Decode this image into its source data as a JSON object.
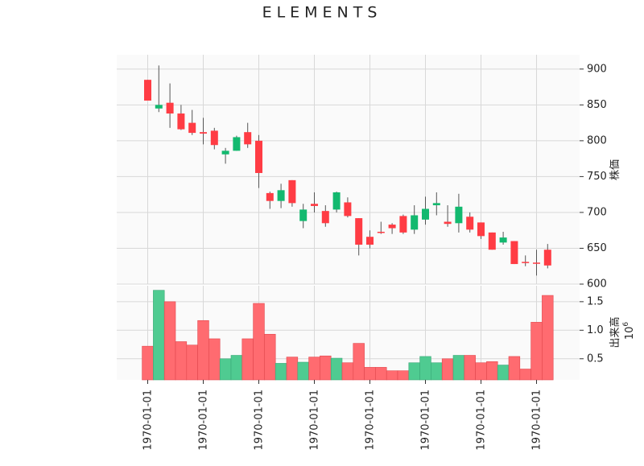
{
  "chart_data": {
    "type": "candlestick",
    "title": "ELEMENTS",
    "price_label": "株価",
    "volume_label": "出来高",
    "volume_multiplier": "10",
    "volume_multiplier_exp": "6",
    "price_ylim": [
      600,
      920
    ],
    "price_ticks": [
      "600",
      "650",
      "700",
      "750",
      "800",
      "850",
      "900"
    ],
    "volume_ylim": [
      0.13,
      1.78
    ],
    "volume_ticks": [
      "0.5",
      "1.0",
      "1.5"
    ],
    "x_tick_labels": [
      "1970-01-01",
      "1970-01-01",
      "1970-01-01",
      "1970-01-01",
      "1970-01-01",
      "1970-01-01",
      "1970-01-01",
      "1970-01-01"
    ],
    "x_tick_at": [
      0,
      5,
      10,
      15,
      20,
      25,
      30,
      35
    ],
    "up_color": "#13b96f",
    "down_color": "#ff3c44",
    "vol_up_color": "#4fcb91",
    "vol_down_color": "#ff6b70",
    "grid": true,
    "candles": [
      {
        "o": 885,
        "h": 885,
        "l": 856,
        "c": 856,
        "v": 0.72
      },
      {
        "o": 845,
        "h": 905,
        "l": 840,
        "c": 850,
        "v": 1.7
      },
      {
        "o": 853,
        "h": 880,
        "l": 818,
        "c": 838,
        "v": 1.5
      },
      {
        "o": 838,
        "h": 850,
        "l": 815,
        "c": 816,
        "v": 0.8
      },
      {
        "o": 825,
        "h": 843,
        "l": 808,
        "c": 811,
        "v": 0.74
      },
      {
        "o": 812,
        "h": 832,
        "l": 795,
        "c": 810,
        "v": 1.17
      },
      {
        "o": 814,
        "h": 818,
        "l": 788,
        "c": 794,
        "v": 0.85
      },
      {
        "o": 781,
        "h": 790,
        "l": 768,
        "c": 786,
        "v": 0.5
      },
      {
        "o": 786,
        "h": 807,
        "l": 786,
        "c": 805,
        "v": 0.56
      },
      {
        "o": 812,
        "h": 825,
        "l": 790,
        "c": 795,
        "v": 0.85
      },
      {
        "o": 800,
        "h": 808,
        "l": 734,
        "c": 755,
        "v": 1.47
      },
      {
        "o": 727,
        "h": 729,
        "l": 705,
        "c": 716,
        "v": 0.93
      },
      {
        "o": 716,
        "h": 740,
        "l": 706,
        "c": 731,
        "v": 0.42
      },
      {
        "o": 745,
        "h": 745,
        "l": 708,
        "c": 713,
        "v": 0.53
      },
      {
        "o": 688,
        "h": 712,
        "l": 678,
        "c": 704,
        "v": 0.44
      },
      {
        "o": 712,
        "h": 728,
        "l": 700,
        "c": 709,
        "v": 0.53
      },
      {
        "o": 702,
        "h": 710,
        "l": 680,
        "c": 685,
        "v": 0.55
      },
      {
        "o": 704,
        "h": 729,
        "l": 700,
        "c": 728,
        "v": 0.51
      },
      {
        "o": 714,
        "h": 721,
        "l": 693,
        "c": 695,
        "v": 0.43
      },
      {
        "o": 692,
        "h": 692,
        "l": 640,
        "c": 655,
        "v": 0.77
      },
      {
        "o": 666,
        "h": 675,
        "l": 650,
        "c": 655,
        "v": 0.35
      },
      {
        "o": 673,
        "h": 687,
        "l": 670,
        "c": 672,
        "v": 0.35
      },
      {
        "o": 683,
        "h": 685,
        "l": 670,
        "c": 678,
        "v": 0.29
      },
      {
        "o": 695,
        "h": 697,
        "l": 670,
        "c": 672,
        "v": 0.29
      },
      {
        "o": 676,
        "h": 710,
        "l": 670,
        "c": 696,
        "v": 0.43
      },
      {
        "o": 690,
        "h": 722,
        "l": 683,
        "c": 705,
        "v": 0.54
      },
      {
        "o": 710,
        "h": 728,
        "l": 696,
        "c": 713,
        "v": 0.43
      },
      {
        "o": 687,
        "h": 710,
        "l": 680,
        "c": 684,
        "v": 0.5
      },
      {
        "o": 685,
        "h": 726,
        "l": 672,
        "c": 708,
        "v": 0.56
      },
      {
        "o": 694,
        "h": 700,
        "l": 672,
        "c": 676,
        "v": 0.56
      },
      {
        "o": 686,
        "h": 686,
        "l": 663,
        "c": 667,
        "v": 0.43
      },
      {
        "o": 672,
        "h": 672,
        "l": 648,
        "c": 648,
        "v": 0.45
      },
      {
        "o": 658,
        "h": 673,
        "l": 655,
        "c": 665,
        "v": 0.39
      },
      {
        "o": 660,
        "h": 660,
        "l": 628,
        "c": 628,
        "v": 0.54
      },
      {
        "o": 631,
        "h": 640,
        "l": 625,
        "c": 630,
        "v": 0.32
      },
      {
        "o": 630,
        "h": 648,
        "l": 612,
        "c": 629,
        "v": 1.14
      },
      {
        "o": 648,
        "h": 656,
        "l": 622,
        "c": 626,
        "v": 1.61
      }
    ]
  }
}
